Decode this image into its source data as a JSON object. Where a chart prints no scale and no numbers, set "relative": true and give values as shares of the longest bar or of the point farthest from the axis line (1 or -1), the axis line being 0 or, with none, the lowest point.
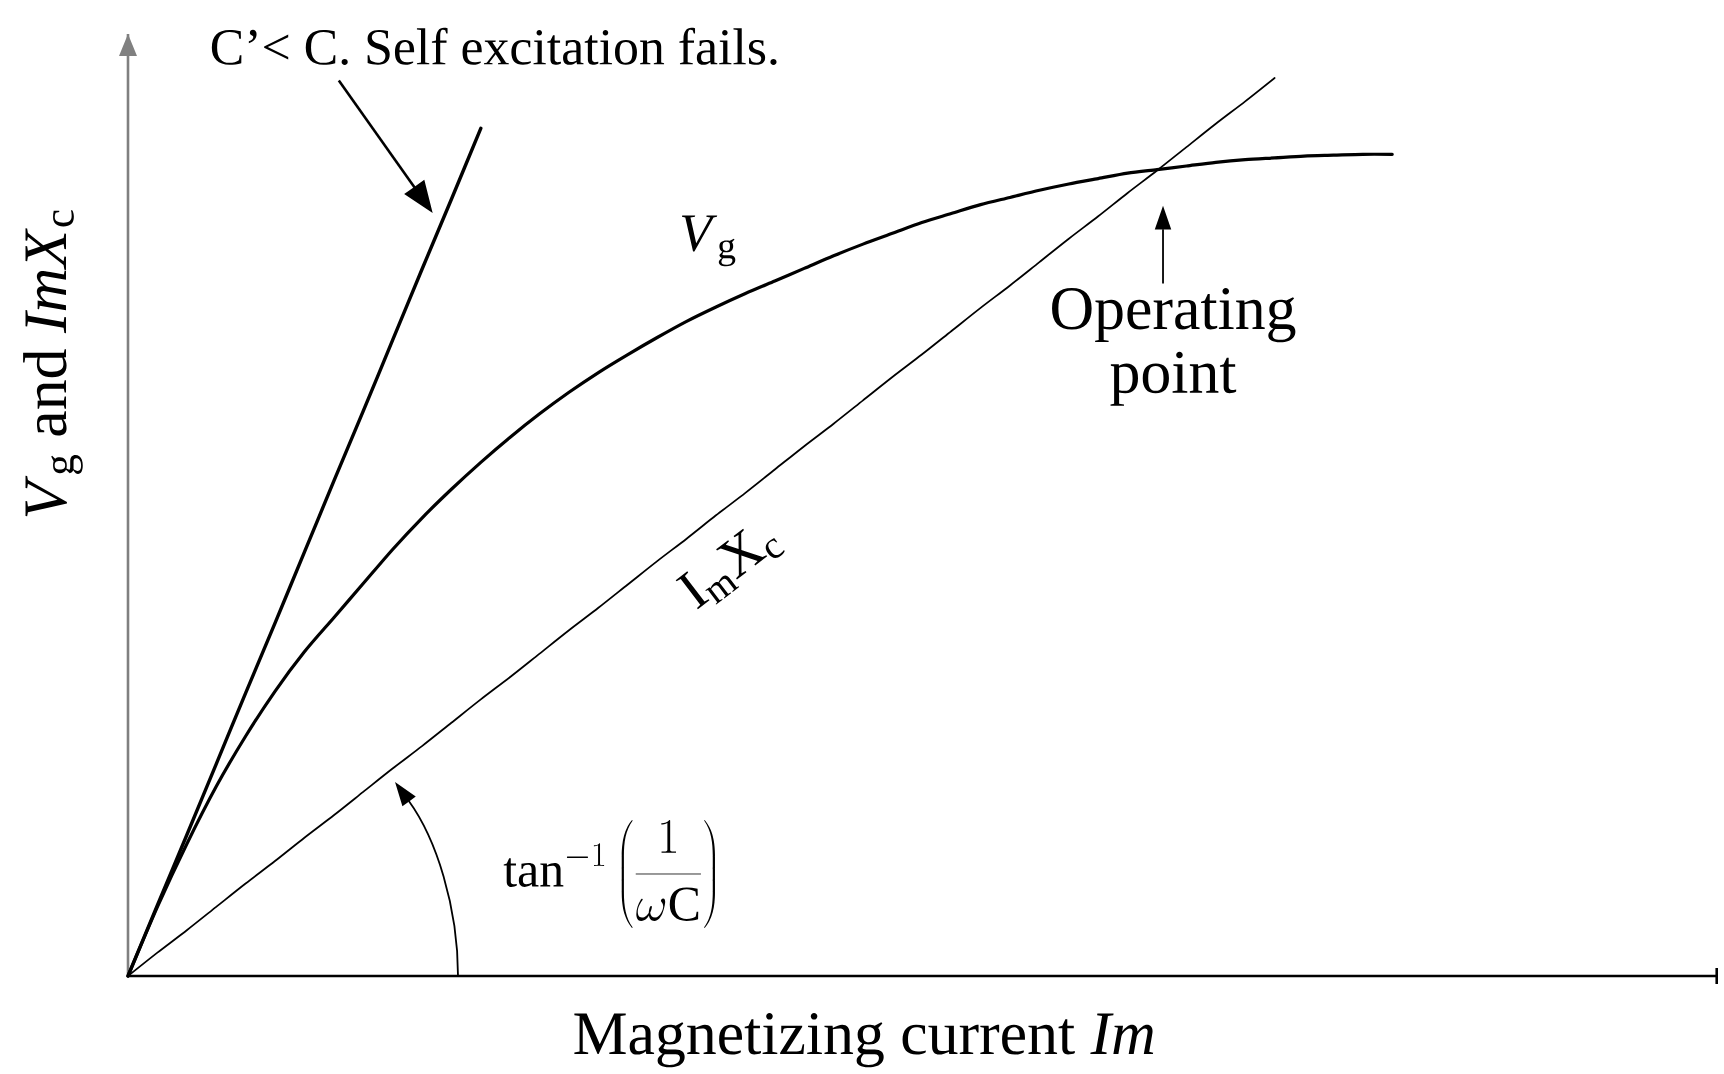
{
  "chart_data": {
    "type": "line",
    "xlabel": "Magnetizing current *Im*",
    "ylabel": "*V*$_{g}$ and *ImX*$_{c}$",
    "relative": true,
    "categories": [
      null,
      null,
      null,
      null,
      null,
      null,
      null,
      null,
      null,
      null,
      null,
      null,
      null,
      null,
      null,
      null,
      null,
      null,
      null,
      null,
      null,
      null,
      null,
      null,
      null,
      null,
      null,
      null,
      null,
      null,
      null,
      null,
      null,
      null,
      null,
      null,
      null,
      null,
      null,
      null,
      null,
      null,
      null,
      null
    ],
    "series": [
      {
        "color": "#000000",
        "values": [
          0,
          0.079,
          0.157,
          0.236,
          0.315,
          0.393,
          0.472,
          0.551,
          0.629,
          0.708,
          0.787,
          0.865,
          0.944,
          null,
          null,
          null,
          null,
          null,
          null,
          null,
          null,
          null,
          null,
          null,
          null,
          null,
          null,
          null,
          null,
          null,
          null,
          null,
          null,
          null,
          null,
          null,
          null,
          null,
          null,
          null,
          null,
          null,
          null,
          null
        ]
      },
      {
        "name": "*V*$_{g}$",
        "color": "#000000",
        "values": [
          0,
          0.077,
          0.147,
          0.211,
          0.267,
          0.317,
          0.361,
          0.399,
          0.437,
          0.475,
          0.51,
          0.542,
          0.572,
          0.6,
          0.626,
          0.65,
          0.672,
          0.692,
          0.711,
          0.729,
          0.745,
          0.76,
          0.774,
          0.788,
          0.802,
          0.815,
          0.827,
          0.839,
          0.849,
          0.859,
          0.867,
          0.875,
          0.882,
          0.888,
          0.894,
          0.898,
          0.902,
          0.906,
          0.909,
          0.911,
          0.913,
          0.914,
          0.915,
          0.915
        ]
      },
      {
        "name": "I$_{m}$X$_{c}$",
        "color": "#000000",
        "values": [
          0,
          0.026,
          0.051,
          0.077,
          0.103,
          0.128,
          0.154,
          0.179,
          0.205,
          0.231,
          0.256,
          0.282,
          0.308,
          0.333,
          0.359,
          0.385,
          0.41,
          0.436,
          0.462,
          0.487,
          0.513,
          0.538,
          0.564,
          0.59,
          0.615,
          0.641,
          0.667,
          0.692,
          0.718,
          0.744,
          0.769,
          0.795,
          0.821,
          0.846,
          0.872,
          0.897,
          0.923,
          0.949,
          0.974,
          1,
          null,
          null,
          null,
          null
        ]
      }
    ],
    "annotations": [
      "C’< C. Self excitation fails.",
      {
        "text": "Operating point",
        "y": 0.898
      },
      "\\tan^{-1}\\left(\\frac{1}{\\omega\\mathrm{C}}\\right)"
    ]
  }
}
